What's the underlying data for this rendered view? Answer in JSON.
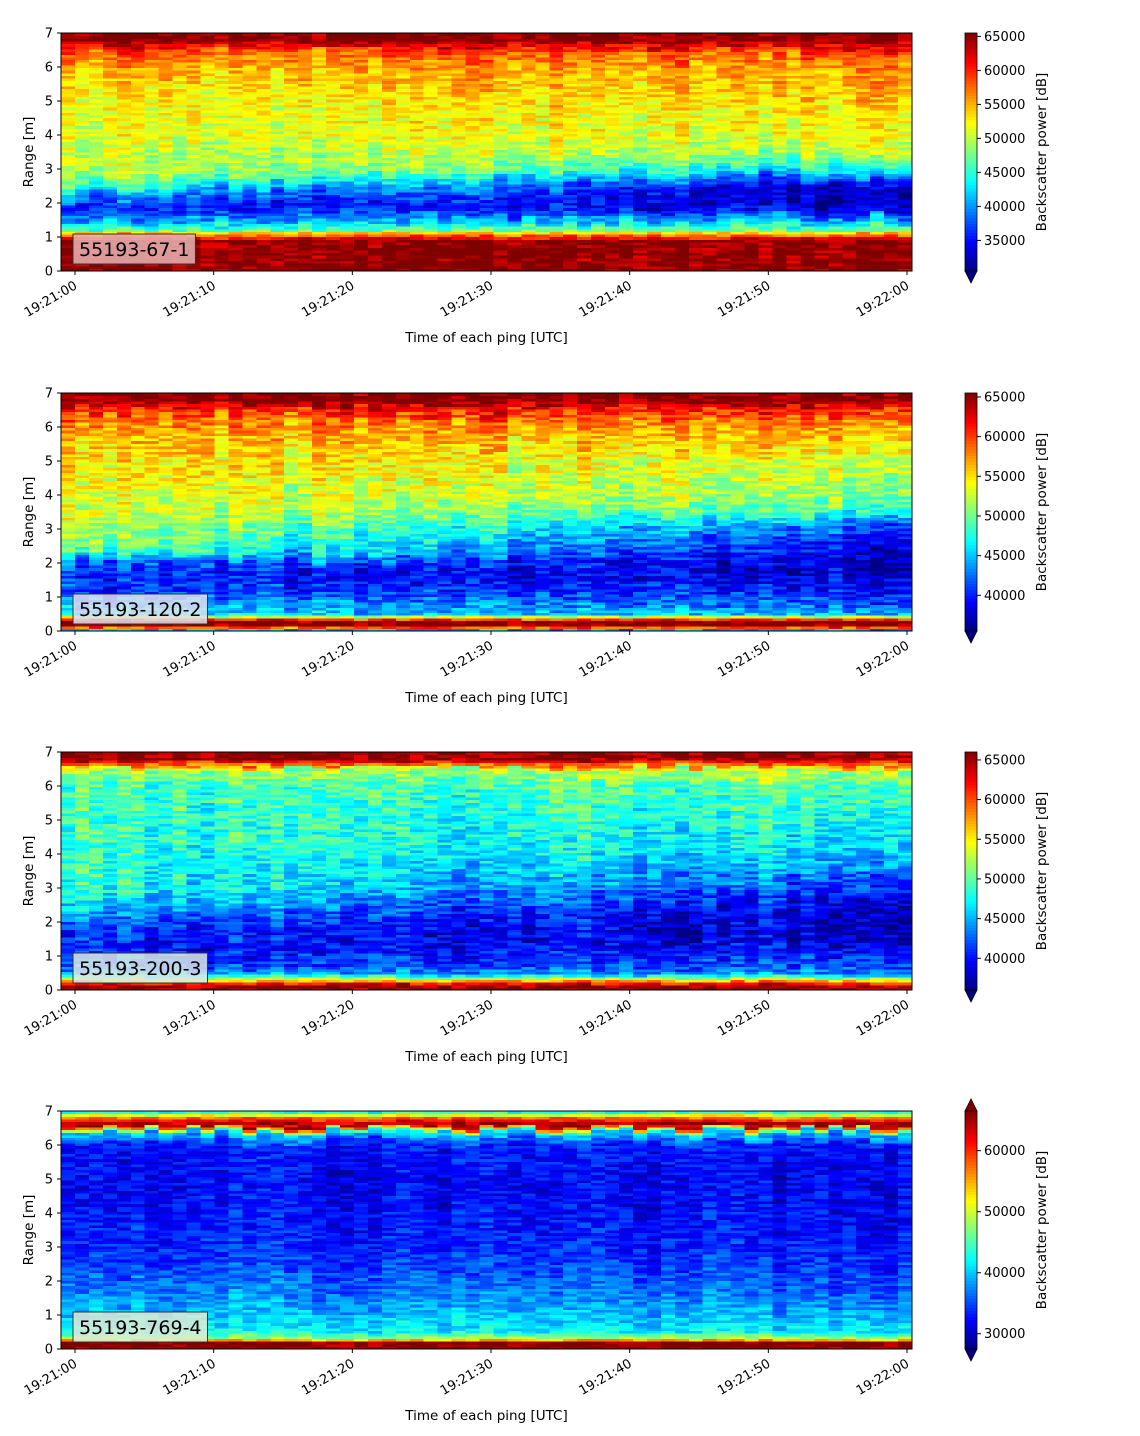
{
  "figure": {
    "xlabel": "Time of each ping [UTC]",
    "ylabel": "Range [m]",
    "colorbar_label": "Backscatter power [dB]",
    "colormap": "jet",
    "x_tick_labels": [
      "19:21:00",
      "19:21:10",
      "19:21:20",
      "19:21:30",
      "19:21:40",
      "19:21:50",
      "19:22:00"
    ]
  },
  "chart_data": [
    {
      "type": "heatmap",
      "label": "55193-67-1",
      "label_bg": "#e8b4b4",
      "xlabel": "Time of each ping [UTC]",
      "ylabel": "Range [m]",
      "x_start": "19:21:00",
      "x_end": "19:22:00",
      "x_ticks": [
        "19:21:00",
        "19:21:10",
        "19:21:20",
        "19:21:30",
        "19:21:40",
        "19:21:50",
        "19:22:00"
      ],
      "ylim": [
        0,
        7
      ],
      "y_ticks": [
        0,
        1,
        2,
        3,
        4,
        5,
        6,
        7
      ],
      "colorbar": {
        "label": "Backscatter power [dB]",
        "vmin": 30500,
        "vmax": 65500,
        "ticks": [
          35000,
          40000,
          45000,
          50000,
          55000,
          60000,
          65000
        ],
        "extend_min": true,
        "extend_max": false
      },
      "profile": {
        "range_m": [
          0.0,
          0.2,
          0.3,
          0.5,
          0.9,
          1.0,
          1.1,
          1.2,
          1.5,
          1.9,
          2.3,
          2.6,
          3.0,
          3.5,
          4.0,
          5.0,
          6.0,
          6.5,
          6.8,
          7.0
        ],
        "power_start": [
          65500,
          65500,
          65000,
          65500,
          65000,
          60000,
          56000,
          47000,
          40000,
          36000,
          41000,
          47000,
          51000,
          50000,
          51500,
          52000,
          55000,
          58000,
          65500,
          65500
        ],
        "power_end": [
          65500,
          65500,
          65000,
          65500,
          65000,
          60000,
          56000,
          48000,
          42000,
          33000,
          32000,
          33000,
          43000,
          50000,
          52000,
          54000,
          56000,
          59000,
          65500,
          65500
        ]
      }
    },
    {
      "type": "heatmap",
      "label": "55193-120-2",
      "label_bg": "#dfe2ee",
      "xlabel": "Time of each ping [UTC]",
      "ylabel": "Range [m]",
      "x_start": "19:21:00",
      "x_end": "19:22:00",
      "x_ticks": [
        "19:21:00",
        "19:21:10",
        "19:21:20",
        "19:21:30",
        "19:21:40",
        "19:21:50",
        "19:22:00"
      ],
      "ylim": [
        0,
        7
      ],
      "y_ticks": [
        0,
        1,
        2,
        3,
        4,
        5,
        6,
        7
      ],
      "colorbar": {
        "label": "Backscatter power [dB]",
        "vmin": 35500,
        "vmax": 65500,
        "ticks": [
          40000,
          45000,
          50000,
          55000,
          60000,
          65000
        ],
        "extend_min": true,
        "extend_max": false
      },
      "profile": {
        "range_m": [
          0.0,
          0.15,
          0.3,
          0.5,
          0.8,
          1.2,
          1.6,
          2.0,
          2.4,
          3.0,
          3.5,
          4.0,
          5.0,
          6.0,
          6.5,
          6.8,
          7.0
        ],
        "power_start": [
          37000,
          65500,
          65500,
          45000,
          44000,
          41000,
          40000,
          42000,
          50000,
          52000,
          53000,
          53500,
          55000,
          57000,
          60000,
          65500,
          65500
        ],
        "power_end": [
          37000,
          65500,
          65500,
          45000,
          42000,
          40000,
          38000,
          37500,
          38000,
          41000,
          48000,
          51000,
          53000,
          57000,
          61000,
          65500,
          65500
        ]
      }
    },
    {
      "type": "heatmap",
      "label": "55193-200-3",
      "label_bg": "#dceae6",
      "xlabel": "Time of each ping [UTC]",
      "ylabel": "Range [m]",
      "x_start": "19:21:00",
      "x_end": "19:22:00",
      "x_ticks": [
        "19:21:00",
        "19:21:10",
        "19:21:20",
        "19:21:30",
        "19:21:40",
        "19:21:50",
        "19:22:00"
      ],
      "ylim": [
        0,
        7
      ],
      "y_ticks": [
        0,
        1,
        2,
        3,
        4,
        5,
        6,
        7
      ],
      "colorbar": {
        "label": "Backscatter power [dB]",
        "vmin": 36000,
        "vmax": 66000,
        "ticks": [
          40000,
          45000,
          50000,
          55000,
          60000,
          65000
        ],
        "extend_min": true,
        "extend_max": false
      },
      "profile": {
        "range_m": [
          0.0,
          0.15,
          0.35,
          0.5,
          0.8,
          1.2,
          1.6,
          2.0,
          2.5,
          3.0,
          4.0,
          5.0,
          6.0,
          6.5,
          6.8,
          7.0
        ],
        "power_start": [
          65500,
          65500,
          52000,
          44000,
          41000,
          40000,
          40500,
          42000,
          46000,
          48000,
          48500,
          48500,
          49000,
          52000,
          65500,
          65500
        ],
        "power_end": [
          65500,
          65500,
          52000,
          44000,
          42000,
          40000,
          38500,
          38000,
          38500,
          41000,
          46000,
          48000,
          50000,
          53000,
          65500,
          65500
        ]
      }
    },
    {
      "type": "heatmap",
      "label": "55193-769-4",
      "label_bg": "#e0ecd6",
      "xlabel": "Time of each ping [UTC]",
      "ylabel": "Range [m]",
      "x_start": "19:21:00",
      "x_end": "19:22:00",
      "x_ticks": [
        "19:21:00",
        "19:21:10",
        "19:21:20",
        "19:21:30",
        "19:21:40",
        "19:21:50",
        "19:22:00"
      ],
      "ylim": [
        0,
        7
      ],
      "y_ticks": [
        0,
        1,
        2,
        3,
        4,
        5,
        6,
        7
      ],
      "colorbar": {
        "label": "Backscatter power [dB]",
        "vmin": 27500,
        "vmax": 66500,
        "ticks": [
          30000,
          40000,
          50000,
          60000
        ],
        "extend_min": true,
        "extend_max": true
      },
      "profile": {
        "range_m": [
          0.0,
          0.2,
          0.3,
          0.5,
          0.8,
          1.2,
          1.6,
          2.0,
          2.5,
          3.0,
          4.0,
          5.0,
          6.0,
          6.4,
          6.6,
          6.8,
          7.0
        ],
        "power_start": [
          66500,
          66500,
          50000,
          42000,
          41000,
          39500,
          38000,
          37000,
          35000,
          34000,
          33000,
          32500,
          33000,
          41000,
          66500,
          58000,
          40000
        ],
        "power_end": [
          66500,
          66500,
          50000,
          42000,
          40000,
          38000,
          36000,
          35000,
          34000,
          33000,
          32000,
          31500,
          33000,
          41000,
          66500,
          58000,
          40000
        ]
      }
    }
  ]
}
